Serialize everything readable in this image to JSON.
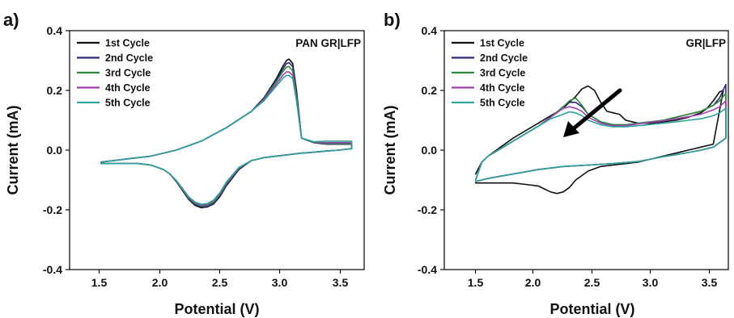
{
  "chart_data": [
    {
      "type": "line",
      "panel_label": "a)",
      "title": "PAN GR|LFP",
      "xlabel": "Potential (V)",
      "ylabel": "Current (mA)",
      "xlim": [
        1.25,
        3.6
      ],
      "ylim": [
        -0.4,
        0.4
      ],
      "xticks": [
        "1.5",
        "2.0",
        "2.5",
        "3.0",
        "3.5"
      ],
      "yticks": [
        "-0.4",
        "-0.2",
        "0.0",
        "0.2",
        "0.4"
      ],
      "legend_position": "top-left",
      "grid": false,
      "series": [
        {
          "name": "1st Cycle",
          "color": "#111111",
          "x": [
            1.5,
            1.7,
            1.9,
            2.1,
            2.3,
            2.5,
            2.7,
            2.8,
            2.9,
            2.95,
            2.98,
            3.0,
            3.03,
            3.06,
            3.1,
            3.2,
            3.3,
            3.4,
            3.5,
            3.5,
            3.4,
            3.3,
            3.2,
            3.1,
            3.0,
            2.9,
            2.8,
            2.7,
            2.6,
            2.5,
            2.45,
            2.4,
            2.35,
            2.3,
            2.25,
            2.2,
            2.15,
            2.1,
            2.05,
            2.0,
            1.9,
            1.8,
            1.7,
            1.6,
            1.5
          ],
          "y": [
            -0.04,
            -0.03,
            -0.02,
            0.0,
            0.03,
            0.075,
            0.13,
            0.175,
            0.24,
            0.28,
            0.3,
            0.305,
            0.29,
            0.2,
            0.04,
            0.025,
            0.02,
            0.02,
            0.02,
            0.005,
            0.0,
            -0.003,
            -0.007,
            -0.01,
            -0.015,
            -0.02,
            -0.025,
            -0.035,
            -0.065,
            -0.12,
            -0.155,
            -0.18,
            -0.19,
            -0.193,
            -0.185,
            -0.165,
            -0.135,
            -0.105,
            -0.08,
            -0.065,
            -0.05,
            -0.045,
            -0.045,
            -0.045,
            -0.045
          ]
        },
        {
          "name": "2nd Cycle",
          "color": "#2b2b7a",
          "x": [
            1.5,
            1.7,
            1.9,
            2.1,
            2.3,
            2.5,
            2.7,
            2.8,
            2.9,
            2.95,
            2.98,
            3.0,
            3.03,
            3.06,
            3.1,
            3.2,
            3.3,
            3.4,
            3.5,
            3.5,
            3.4,
            3.3,
            3.2,
            3.1,
            3.0,
            2.9,
            2.8,
            2.7,
            2.6,
            2.5,
            2.45,
            2.4,
            2.35,
            2.3,
            2.25,
            2.2,
            2.15,
            2.1,
            2.05,
            2.0,
            1.9,
            1.8,
            1.7,
            1.6,
            1.5
          ],
          "y": [
            -0.04,
            -0.03,
            -0.02,
            0.0,
            0.03,
            0.075,
            0.13,
            0.175,
            0.235,
            0.27,
            0.29,
            0.293,
            0.28,
            0.19,
            0.04,
            0.025,
            0.02,
            0.02,
            0.02,
            0.005,
            0.0,
            -0.003,
            -0.007,
            -0.01,
            -0.015,
            -0.02,
            -0.025,
            -0.035,
            -0.063,
            -0.117,
            -0.152,
            -0.178,
            -0.188,
            -0.19,
            -0.182,
            -0.163,
            -0.133,
            -0.104,
            -0.08,
            -0.065,
            -0.05,
            -0.045,
            -0.045,
            -0.045,
            -0.045
          ]
        },
        {
          "name": "3rd Cycle",
          "color": "#2e8b3a",
          "x": [
            1.5,
            1.7,
            1.9,
            2.1,
            2.3,
            2.5,
            2.7,
            2.8,
            2.9,
            2.95,
            2.98,
            3.0,
            3.03,
            3.06,
            3.1,
            3.2,
            3.3,
            3.4,
            3.5,
            3.5,
            3.4,
            3.3,
            3.2,
            3.1,
            3.0,
            2.9,
            2.8,
            2.7,
            2.6,
            2.5,
            2.45,
            2.4,
            2.35,
            2.3,
            2.25,
            2.2,
            2.15,
            2.1,
            2.05,
            2.0,
            1.9,
            1.8,
            1.7,
            1.6,
            1.5
          ],
          "y": [
            -0.04,
            -0.03,
            -0.02,
            0.0,
            0.03,
            0.075,
            0.13,
            0.17,
            0.23,
            0.262,
            0.278,
            0.28,
            0.265,
            0.18,
            0.04,
            0.026,
            0.022,
            0.022,
            0.022,
            0.005,
            0.0,
            -0.003,
            -0.007,
            -0.01,
            -0.015,
            -0.02,
            -0.025,
            -0.035,
            -0.061,
            -0.113,
            -0.148,
            -0.174,
            -0.185,
            -0.187,
            -0.179,
            -0.16,
            -0.131,
            -0.103,
            -0.08,
            -0.065,
            -0.05,
            -0.045,
            -0.045,
            -0.045,
            -0.045
          ]
        },
        {
          "name": "4th Cycle",
          "color": "#a43fb0",
          "x": [
            1.5,
            1.7,
            1.9,
            2.1,
            2.3,
            2.5,
            2.7,
            2.8,
            2.9,
            2.95,
            2.98,
            3.0,
            3.03,
            3.06,
            3.1,
            3.2,
            3.3,
            3.4,
            3.5,
            3.5,
            3.4,
            3.3,
            3.2,
            3.1,
            3.0,
            2.9,
            2.8,
            2.7,
            2.6,
            2.5,
            2.45,
            2.4,
            2.35,
            2.3,
            2.25,
            2.2,
            2.15,
            2.1,
            2.05,
            2.0,
            1.9,
            1.8,
            1.7,
            1.6,
            1.5
          ],
          "y": [
            -0.04,
            -0.03,
            -0.02,
            0.0,
            0.03,
            0.075,
            0.13,
            0.168,
            0.222,
            0.25,
            0.262,
            0.262,
            0.25,
            0.17,
            0.04,
            0.027,
            0.025,
            0.025,
            0.025,
            0.005,
            0.0,
            -0.003,
            -0.007,
            -0.01,
            -0.015,
            -0.02,
            -0.025,
            -0.035,
            -0.06,
            -0.11,
            -0.145,
            -0.17,
            -0.182,
            -0.184,
            -0.176,
            -0.158,
            -0.13,
            -0.102,
            -0.08,
            -0.065,
            -0.05,
            -0.045,
            -0.045,
            -0.045,
            -0.045
          ]
        },
        {
          "name": "5th Cycle",
          "color": "#2aa39a",
          "x": [
            1.5,
            1.7,
            1.9,
            2.1,
            2.3,
            2.5,
            2.7,
            2.8,
            2.9,
            2.95,
            2.98,
            3.0,
            3.03,
            3.06,
            3.1,
            3.2,
            3.3,
            3.4,
            3.5,
            3.5,
            3.4,
            3.3,
            3.2,
            3.1,
            3.0,
            2.9,
            2.8,
            2.7,
            2.6,
            2.5,
            2.45,
            2.4,
            2.35,
            2.3,
            2.25,
            2.2,
            2.15,
            2.1,
            2.05,
            2.0,
            1.9,
            1.8,
            1.7,
            1.6,
            1.5
          ],
          "y": [
            -0.04,
            -0.03,
            -0.02,
            0.0,
            0.03,
            0.075,
            0.13,
            0.165,
            0.215,
            0.24,
            0.25,
            0.25,
            0.24,
            0.165,
            0.04,
            0.028,
            0.03,
            0.03,
            0.03,
            0.005,
            0.0,
            -0.003,
            -0.007,
            -0.01,
            -0.015,
            -0.02,
            -0.025,
            -0.035,
            -0.058,
            -0.107,
            -0.142,
            -0.167,
            -0.179,
            -0.181,
            -0.174,
            -0.156,
            -0.128,
            -0.101,
            -0.08,
            -0.065,
            -0.05,
            -0.045,
            -0.045,
            -0.045,
            -0.045
          ]
        }
      ]
    },
    {
      "type": "line",
      "panel_label": "b)",
      "title": "GR|LFP",
      "xlabel": "Potential (V)",
      "ylabel": "Current (mA)",
      "xlim": [
        1.25,
        3.52
      ],
      "ylim": [
        -0.4,
        0.4
      ],
      "xticks": [
        "1.5",
        "2.0",
        "2.5",
        "3.0",
        "3.5"
      ],
      "yticks": [
        "-0.4",
        "-0.2",
        "0.0",
        "0.2",
        "0.4"
      ],
      "legend_position": "top-left",
      "grid": false,
      "annotation": "arrow pointing down-left indicating decreasing peak current",
      "series": [
        {
          "name": "1st Cycle",
          "color": "#111111",
          "x": [
            1.5,
            1.55,
            1.6,
            1.8,
            2.0,
            2.2,
            2.3,
            2.35,
            2.4,
            2.45,
            2.5,
            2.55,
            2.6,
            2.65,
            2.7,
            2.8,
            2.9,
            3.0,
            3.1,
            3.2,
            3.3,
            3.35,
            3.4,
            3.45,
            3.48,
            3.4,
            3.3,
            3.2,
            3.1,
            3.0,
            2.9,
            2.8,
            2.7,
            2.6,
            2.5,
            2.4,
            2.3,
            2.25,
            2.2,
            2.15,
            2.1,
            2.05,
            2.0,
            1.9,
            1.8,
            1.7,
            1.6,
            1.5
          ],
          "y": [
            -0.08,
            -0.04,
            -0.02,
            0.04,
            0.09,
            0.14,
            0.18,
            0.205,
            0.215,
            0.2,
            0.16,
            0.13,
            0.125,
            0.12,
            0.1,
            0.09,
            0.09,
            0.095,
            0.1,
            0.11,
            0.125,
            0.14,
            0.165,
            0.195,
            0.2,
            0.02,
            0.01,
            0.0,
            -0.01,
            -0.02,
            -0.03,
            -0.04,
            -0.045,
            -0.05,
            -0.055,
            -0.07,
            -0.1,
            -0.125,
            -0.14,
            -0.145,
            -0.14,
            -0.13,
            -0.12,
            -0.115,
            -0.11,
            -0.11,
            -0.11,
            -0.11
          ]
        },
        {
          "name": "2nd Cycle",
          "color": "#2b2b7a",
          "x": [
            1.5,
            1.55,
            1.6,
            1.8,
            2.0,
            2.1,
            2.2,
            2.25,
            2.3,
            2.35,
            2.4,
            2.5,
            2.6,
            2.7,
            2.8,
            2.9,
            3.0,
            3.1,
            3.2,
            3.3,
            3.4,
            3.45,
            3.5,
            3.5,
            3.4,
            3.3,
            3.2,
            3.1,
            3.0,
            2.9,
            2.8,
            2.6,
            2.4,
            2.2,
            2.0,
            1.8,
            1.6,
            1.5
          ],
          "y": [
            -0.1,
            -0.04,
            -0.02,
            0.03,
            0.08,
            0.11,
            0.145,
            0.16,
            0.16,
            0.145,
            0.12,
            0.095,
            0.085,
            0.085,
            0.09,
            0.095,
            0.1,
            0.11,
            0.12,
            0.13,
            0.15,
            0.175,
            0.22,
            0.04,
            0.01,
            0.0,
            -0.008,
            -0.015,
            -0.022,
            -0.03,
            -0.038,
            -0.045,
            -0.05,
            -0.055,
            -0.065,
            -0.08,
            -0.095,
            -0.105
          ]
        },
        {
          "name": "3rd Cycle",
          "color": "#2e8b3a",
          "x": [
            1.5,
            1.55,
            1.6,
            1.8,
            2.0,
            2.1,
            2.2,
            2.25,
            2.3,
            2.35,
            2.4,
            2.5,
            2.6,
            2.7,
            2.8,
            2.9,
            3.0,
            3.1,
            3.2,
            3.3,
            3.4,
            3.45,
            3.5,
            3.5,
            3.4,
            3.3,
            3.2,
            3.1,
            3.0,
            2.9,
            2.8,
            2.6,
            2.4,
            2.2,
            2.0,
            1.8,
            1.6,
            1.5
          ],
          "y": [
            -0.1,
            -0.04,
            -0.02,
            0.03,
            0.08,
            0.11,
            0.145,
            0.165,
            0.175,
            0.15,
            0.12,
            0.095,
            0.085,
            0.085,
            0.09,
            0.095,
            0.1,
            0.11,
            0.12,
            0.13,
            0.15,
            0.165,
            0.19,
            0.04,
            0.01,
            0.0,
            -0.008,
            -0.015,
            -0.022,
            -0.03,
            -0.038,
            -0.045,
            -0.05,
            -0.055,
            -0.065,
            -0.08,
            -0.095,
            -0.105
          ]
        },
        {
          "name": "4th Cycle",
          "color": "#a43fb0",
          "x": [
            1.5,
            1.55,
            1.6,
            1.8,
            2.0,
            2.1,
            2.2,
            2.25,
            2.3,
            2.35,
            2.4,
            2.5,
            2.6,
            2.7,
            2.8,
            2.9,
            3.0,
            3.1,
            3.2,
            3.3,
            3.4,
            3.45,
            3.5,
            3.5,
            3.4,
            3.3,
            3.2,
            3.1,
            3.0,
            2.9,
            2.8,
            2.6,
            2.4,
            2.2,
            2.0,
            1.8,
            1.6,
            1.5
          ],
          "y": [
            -0.1,
            -0.04,
            -0.02,
            0.03,
            0.08,
            0.11,
            0.14,
            0.145,
            0.14,
            0.13,
            0.11,
            0.09,
            0.082,
            0.082,
            0.088,
            0.093,
            0.098,
            0.105,
            0.112,
            0.12,
            0.135,
            0.145,
            0.165,
            0.04,
            0.01,
            0.0,
            -0.008,
            -0.015,
            -0.022,
            -0.03,
            -0.038,
            -0.045,
            -0.05,
            -0.055,
            -0.065,
            -0.08,
            -0.095,
            -0.105
          ]
        },
        {
          "name": "5th Cycle",
          "color": "#2aa39a",
          "x": [
            1.5,
            1.55,
            1.6,
            1.8,
            2.0,
            2.1,
            2.2,
            2.25,
            2.3,
            2.35,
            2.4,
            2.5,
            2.6,
            2.7,
            2.8,
            2.9,
            3.0,
            3.1,
            3.2,
            3.3,
            3.4,
            3.45,
            3.5,
            3.5,
            3.4,
            3.3,
            3.2,
            3.1,
            3.0,
            2.9,
            2.8,
            2.6,
            2.4,
            2.2,
            2.0,
            1.8,
            1.6,
            1.5
          ],
          "y": [
            -0.1,
            -0.04,
            -0.02,
            0.03,
            0.08,
            0.105,
            0.12,
            0.128,
            0.125,
            0.115,
            0.1,
            0.085,
            0.078,
            0.078,
            0.082,
            0.086,
            0.09,
            0.095,
            0.1,
            0.105,
            0.115,
            0.125,
            0.14,
            0.04,
            0.01,
            0.0,
            -0.008,
            -0.015,
            -0.022,
            -0.03,
            -0.038,
            -0.045,
            -0.05,
            -0.055,
            -0.065,
            -0.08,
            -0.095,
            -0.105
          ]
        }
      ]
    }
  ]
}
